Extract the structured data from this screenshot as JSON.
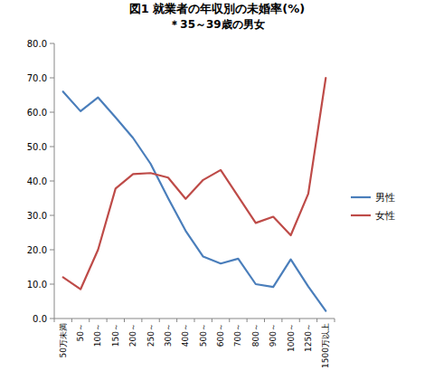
{
  "chart_data": {
    "type": "line",
    "title": "図1 就業者の年収別の未婚率(%)",
    "subtitle": "＊35～39歳の男女",
    "categories": [
      "50万未満",
      "50～",
      "100～",
      "150～",
      "200～",
      "250～",
      "300～",
      "400～",
      "500～",
      "600～",
      "700～",
      "800～",
      "900～",
      "1000～",
      "1250～",
      "1500万以上"
    ],
    "series": [
      {
        "name": "男性",
        "color": "#4a7ebb",
        "values": [
          66.0,
          60.3,
          64.3,
          58.5,
          52.5,
          45.0,
          35.0,
          25.5,
          18.0,
          16.0,
          17.4,
          10.0,
          9.2,
          17.2,
          9.3,
          2.2
        ]
      },
      {
        "name": "女性",
        "color": "#be4b48",
        "values": [
          12.0,
          8.5,
          20.0,
          37.8,
          42.0,
          42.3,
          41.0,
          34.8,
          40.3,
          43.2,
          35.5,
          27.8,
          29.6,
          24.2,
          36.3,
          70.0
        ]
      }
    ],
    "ylim": [
      0,
      80
    ],
    "yticks": [
      {
        "value": 0,
        "label": "0.0"
      },
      {
        "value": 10,
        "label": "10.0"
      },
      {
        "value": 20,
        "label": "20.0"
      },
      {
        "value": 30,
        "label": "30.0"
      },
      {
        "value": 40,
        "label": "40.0"
      },
      {
        "value": 50,
        "label": "50.0"
      },
      {
        "value": 60,
        "label": "60.0"
      },
      {
        "value": 70,
        "label": "70.0"
      },
      {
        "value": 80,
        "label": "80.0"
      }
    ],
    "grid": false,
    "legend": "right"
  }
}
